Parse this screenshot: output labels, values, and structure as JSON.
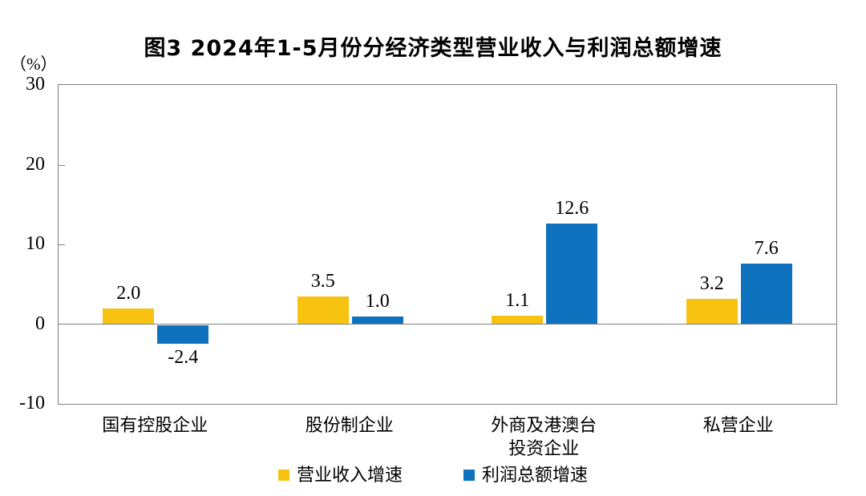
{
  "title": "图3  2024年1-5月份分经济类型营业收入与利润总额增速",
  "chart_data": {
    "type": "bar",
    "categories": [
      "国有控股企业",
      "股份制企业",
      "外商及港澳台\n投资企业",
      "私营企业"
    ],
    "series": [
      {
        "name": "营业收入增速",
        "color": "#F8C211",
        "values": [
          2.0,
          3.5,
          1.1,
          3.2
        ]
      },
      {
        "name": "利润总额增速",
        "color": "#0F72BE",
        "values": [
          -2.4,
          1.0,
          12.6,
          7.6
        ]
      }
    ],
    "value_label_format": "one_decimal",
    "ylabel": "（%）",
    "yticks": [
      30,
      20,
      10,
      0,
      -10
    ],
    "ylim": [
      -10,
      30
    ],
    "grid": false,
    "legend_position": "bottom",
    "axis_color": "#808080"
  }
}
